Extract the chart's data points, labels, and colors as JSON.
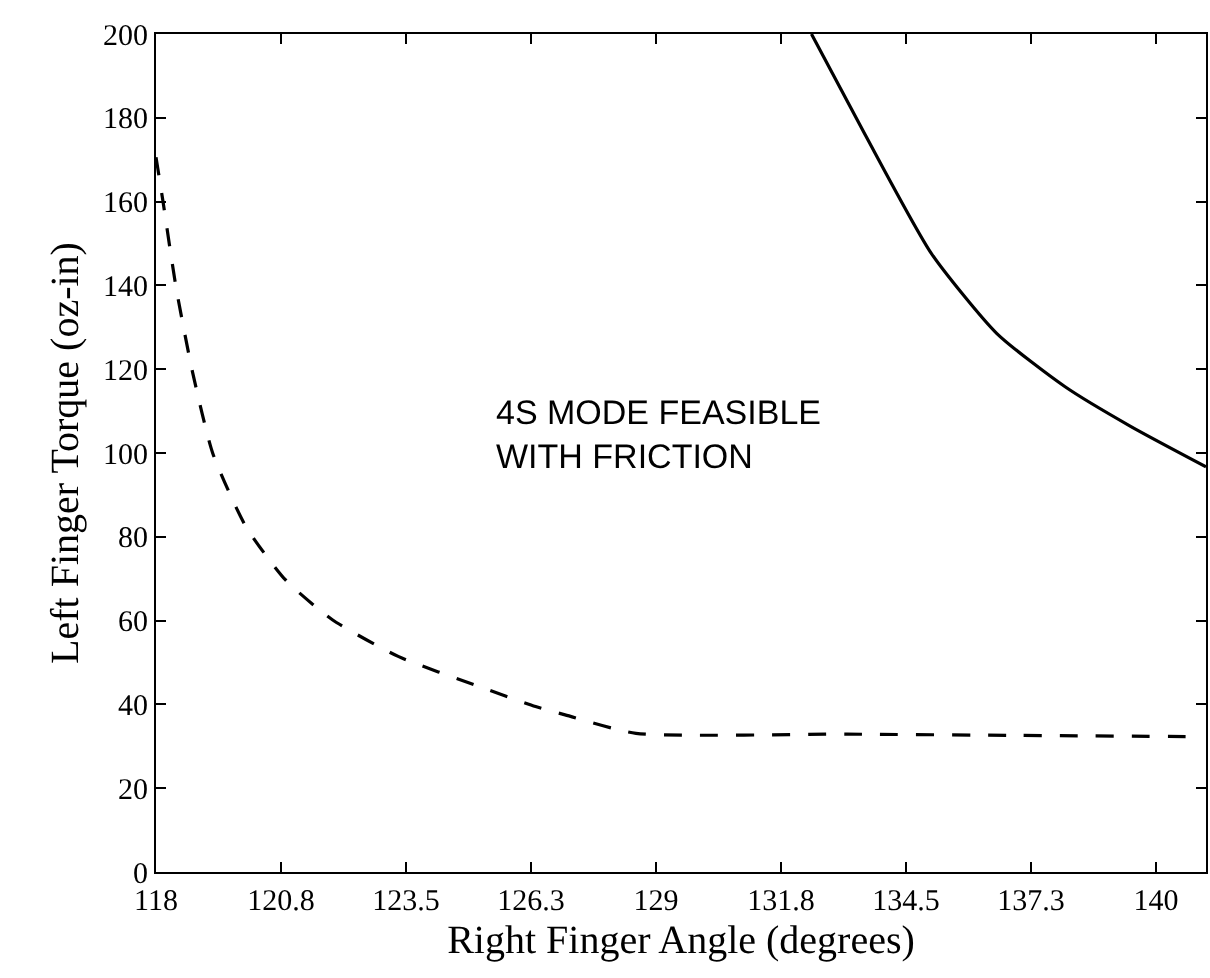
{
  "chart_data": {
    "type": "line",
    "xlabel": "Right Finger Angle (degrees)",
    "ylabel": "Left Finger Torque (oz-in)",
    "annotations": [
      "4S MODE FEASIBLE\nWITH FRICTION"
    ],
    "series": [
      {
        "color": "#000000",
        "line_style": "dashed",
        "x": [
          118,
          118.15,
          118.44,
          118.81,
          119.25,
          119.98,
          120.85,
          121.88,
          123.34,
          125.1,
          126.35,
          127.0,
          128.56,
          133.2,
          137.0,
          141.0
        ],
        "values": [
          170.6,
          160.3,
          139.6,
          119,
          99.9,
          82.4,
          69.7,
          60.2,
          51.4,
          44.3,
          39.5,
          37.5,
          33.1,
          32.9,
          32.6,
          32.3
        ]
      },
      {
        "color": "#000000",
        "line_style": "solid",
        "x": [
          132.42,
          133.59,
          135.06,
          136.5,
          138.0,
          139.45,
          141.1
        ],
        "values": [
          200,
          176.2,
          147.6,
          128.5,
          115.8,
          106.3,
          96.7
        ]
      }
    ],
    "xlim": [
      118,
      141.1
    ],
    "xticks": [
      {
        "value": 118,
        "label": "118"
      },
      {
        "value": 120.75,
        "label": "120.8"
      },
      {
        "value": 123.5,
        "label": "123.5"
      },
      {
        "value": 126.25,
        "label": "126.3"
      },
      {
        "value": 129,
        "label": "129"
      },
      {
        "value": 131.75,
        "label": "131.8"
      },
      {
        "value": 134.5,
        "label": "134.5"
      },
      {
        "value": 137.25,
        "label": "137.3"
      },
      {
        "value": 140,
        "label": "140"
      }
    ],
    "ylim": [
      0,
      200
    ],
    "yticks": [
      0,
      20,
      40,
      60,
      80,
      100,
      120,
      140,
      160,
      180,
      200
    ],
    "marker": "none"
  }
}
